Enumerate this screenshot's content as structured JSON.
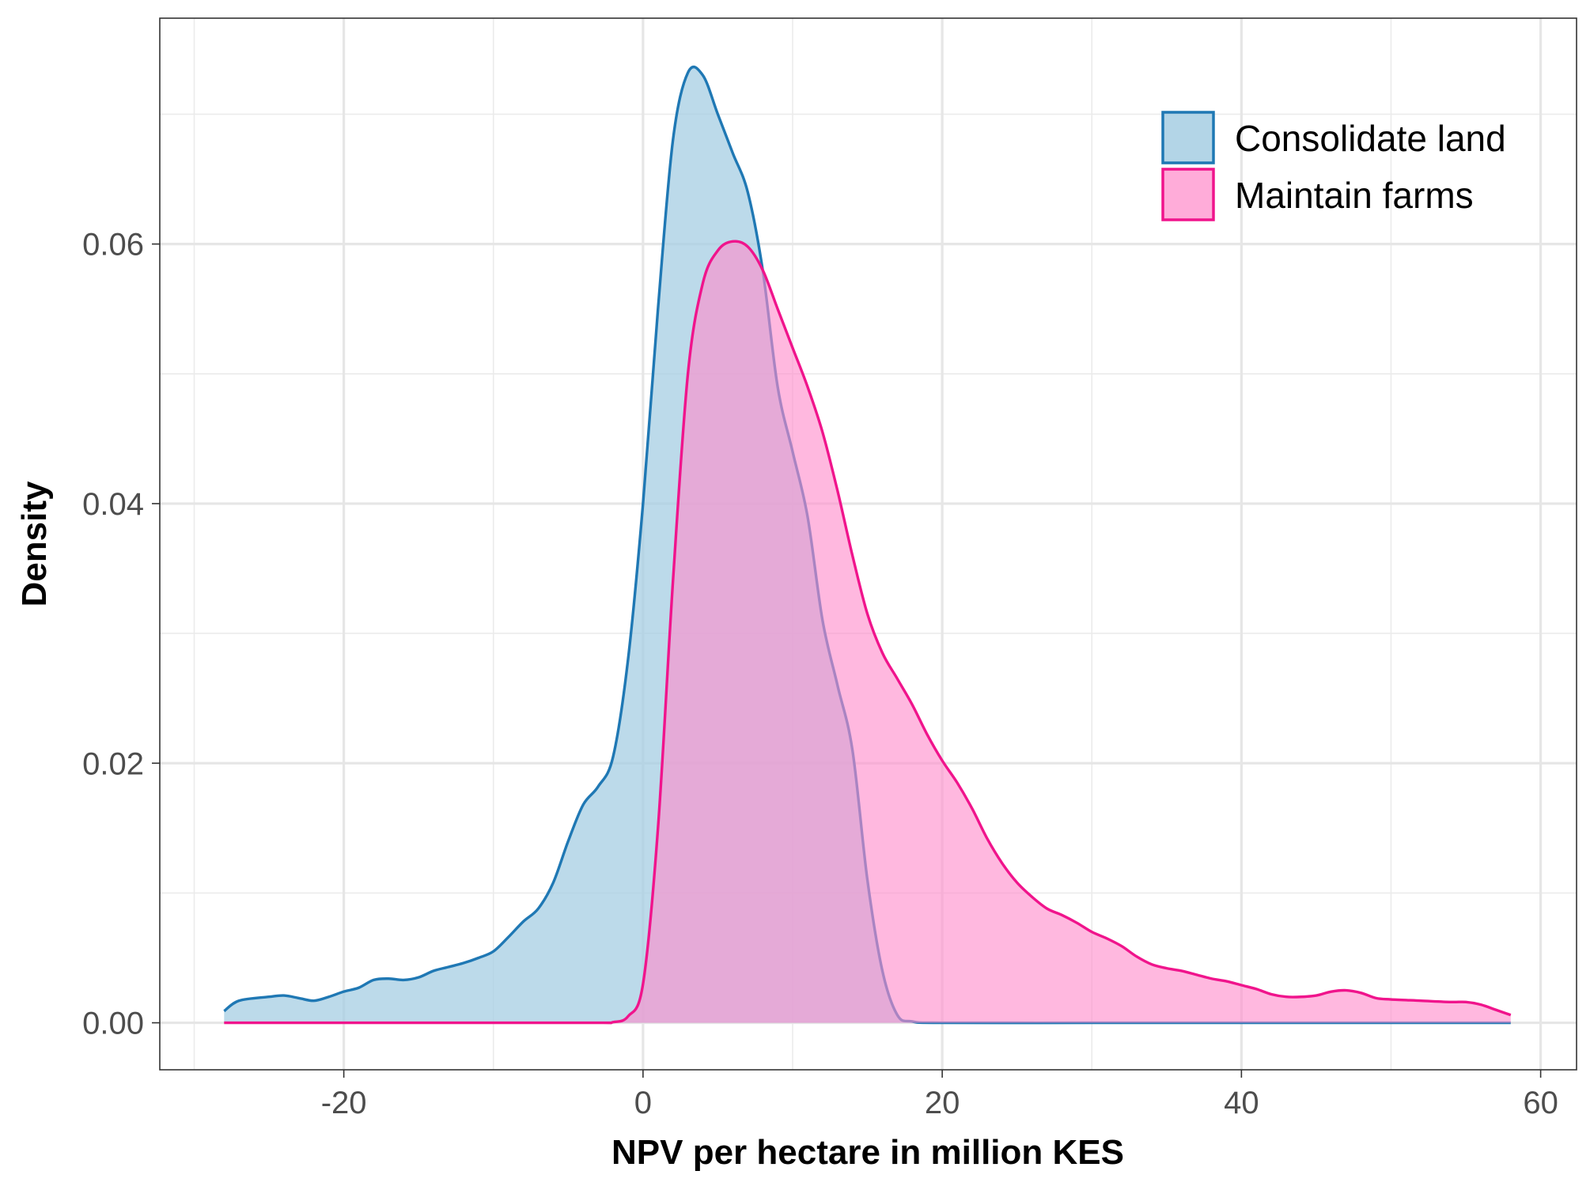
{
  "chart_data": {
    "type": "area",
    "title": "",
    "xlabel": "NPV per hectare in million KES",
    "ylabel": "Density",
    "xlim": [
      -32.3,
      62.4
    ],
    "ylim": [
      -0.00362,
      0.0774
    ],
    "x_ticks": [
      -20,
      0,
      20,
      40,
      60
    ],
    "x_tick_labels": [
      "-20",
      "0",
      "20",
      "40",
      "60"
    ],
    "y_ticks": [
      0.0,
      0.02,
      0.04,
      0.06
    ],
    "y_tick_labels": [
      "0.00",
      "0.02",
      "0.04",
      "0.06"
    ],
    "grid": true,
    "legend_position": "top-right",
    "series": [
      {
        "name": "Consolidate land",
        "line_color": "#1f78b4",
        "fill_color": "#a6cee3",
        "fill_opacity": 0.75,
        "points": [
          [
            -28,
            0.0009
          ],
          [
            -27,
            0.0017
          ],
          [
            -25,
            0.002
          ],
          [
            -24,
            0.0021
          ],
          [
            -23,
            0.0019
          ],
          [
            -22,
            0.0017
          ],
          [
            -21,
            0.002
          ],
          [
            -20,
            0.0024
          ],
          [
            -19,
            0.0027
          ],
          [
            -18,
            0.0033
          ],
          [
            -17,
            0.0034
          ],
          [
            -16,
            0.0033
          ],
          [
            -15,
            0.0035
          ],
          [
            -14,
            0.004
          ],
          [
            -13,
            0.0043
          ],
          [
            -12,
            0.0046
          ],
          [
            -11,
            0.005
          ],
          [
            -10,
            0.0055
          ],
          [
            -9,
            0.0066
          ],
          [
            -8,
            0.0078
          ],
          [
            -7,
            0.0088
          ],
          [
            -6,
            0.0108
          ],
          [
            -5,
            0.014
          ],
          [
            -4,
            0.0168
          ],
          [
            -3,
            0.0182
          ],
          [
            -2,
            0.0205
          ],
          [
            -1,
            0.028
          ],
          [
            0,
            0.04
          ],
          [
            1,
            0.055
          ],
          [
            2,
            0.068
          ],
          [
            3,
            0.0732
          ],
          [
            4,
            0.073
          ],
          [
            5,
            0.07
          ],
          [
            6,
            0.067
          ],
          [
            7,
            0.064
          ],
          [
            8,
            0.058
          ],
          [
            9,
            0.049
          ],
          [
            10,
            0.044
          ],
          [
            11,
            0.039
          ],
          [
            12,
            0.031
          ],
          [
            13,
            0.026
          ],
          [
            14,
            0.021
          ],
          [
            15,
            0.011
          ],
          [
            16,
            0.004
          ],
          [
            17,
            0.0006
          ],
          [
            18,
            0.0001
          ],
          [
            20,
            0.0
          ],
          [
            30,
            0.0
          ],
          [
            40,
            0.0
          ],
          [
            50,
            0.0
          ],
          [
            58,
            0.0
          ]
        ]
      },
      {
        "name": "Maintain farms",
        "line_color": "#f0148c",
        "fill_color": "#ff8ccb",
        "fill_opacity": 0.62,
        "points": [
          [
            -28,
            0.0
          ],
          [
            -10,
            0.0
          ],
          [
            -3,
            0.0
          ],
          [
            -2,
            5e-05
          ],
          [
            -1,
            0.0005
          ],
          [
            0,
            0.003
          ],
          [
            1,
            0.015
          ],
          [
            2,
            0.034
          ],
          [
            3,
            0.05
          ],
          [
            4,
            0.057
          ],
          [
            5,
            0.0595
          ],
          [
            6,
            0.0602
          ],
          [
            7,
            0.0598
          ],
          [
            8,
            0.058
          ],
          [
            9,
            0.055
          ],
          [
            10,
            0.052
          ],
          [
            11,
            0.049
          ],
          [
            12,
            0.0455
          ],
          [
            13,
            0.041
          ],
          [
            14,
            0.036
          ],
          [
            15,
            0.0315
          ],
          [
            16,
            0.0285
          ],
          [
            17,
            0.0265
          ],
          [
            18,
            0.0245
          ],
          [
            19,
            0.0222
          ],
          [
            20,
            0.0202
          ],
          [
            21,
            0.0185
          ],
          [
            22,
            0.0165
          ],
          [
            23,
            0.0142
          ],
          [
            24,
            0.0123
          ],
          [
            25,
            0.0108
          ],
          [
            26,
            0.0097
          ],
          [
            27,
            0.0088
          ],
          [
            28,
            0.0083
          ],
          [
            29,
            0.0077
          ],
          [
            30,
            0.007
          ],
          [
            31,
            0.0065
          ],
          [
            32,
            0.0059
          ],
          [
            33,
            0.0051
          ],
          [
            34,
            0.0045
          ],
          [
            35,
            0.0042
          ],
          [
            36,
            0.004
          ],
          [
            37,
            0.0037
          ],
          [
            38,
            0.0034
          ],
          [
            39,
            0.0032
          ],
          [
            40,
            0.0029
          ],
          [
            41,
            0.0026
          ],
          [
            42,
            0.0022
          ],
          [
            43,
            0.002
          ],
          [
            44,
            0.002
          ],
          [
            45,
            0.0021
          ],
          [
            46,
            0.0024
          ],
          [
            47,
            0.0025
          ],
          [
            48,
            0.0023
          ],
          [
            49,
            0.0019
          ],
          [
            50,
            0.0018
          ],
          [
            52,
            0.0017
          ],
          [
            54,
            0.0016
          ],
          [
            55,
            0.0016
          ],
          [
            56,
            0.0014
          ],
          [
            57,
            0.001
          ],
          [
            58,
            0.0006
          ]
        ]
      }
    ]
  }
}
